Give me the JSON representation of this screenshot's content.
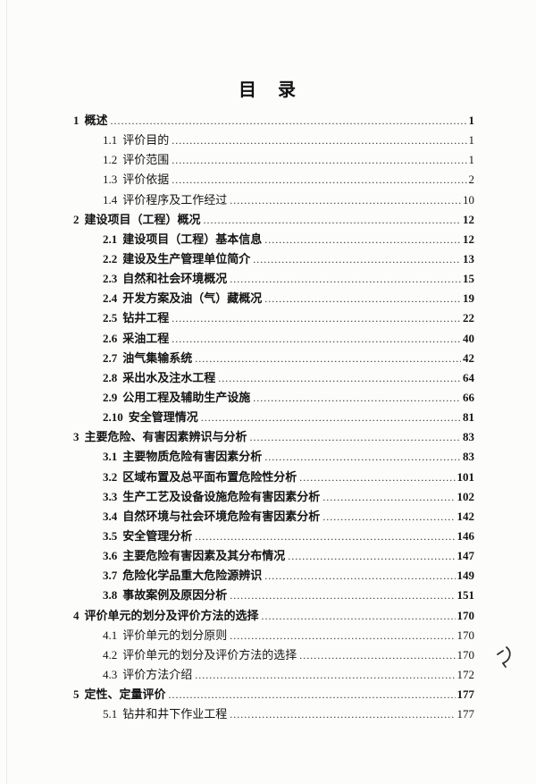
{
  "page": {
    "title": "目　录"
  },
  "annotations": {
    "handwritten_mark": "pen-squiggle"
  },
  "toc": {
    "entries": [
      {
        "num": "1",
        "text": "概述",
        "page": "1",
        "level": 1,
        "bold": true
      },
      {
        "num": "1.1",
        "text": "评价目的",
        "page": "1",
        "level": 2,
        "bold": false
      },
      {
        "num": "1.2",
        "text": "评价范围",
        "page": "1",
        "level": 2,
        "bold": false
      },
      {
        "num": "1.3",
        "text": "评价依据",
        "page": "2",
        "level": 2,
        "bold": false
      },
      {
        "num": "1.4",
        "text": "评价程序及工作经过",
        "page": "10",
        "level": 2,
        "bold": false
      },
      {
        "num": "2",
        "text": "建设项目（工程）概况",
        "page": "12",
        "level": 1,
        "bold": true
      },
      {
        "num": "2.1",
        "text": "建设项目（工程）基本信息",
        "page": "12",
        "level": 2,
        "bold": true
      },
      {
        "num": "2.2",
        "text": "建设及生产管理单位简介",
        "page": "13",
        "level": 2,
        "bold": true
      },
      {
        "num": "2.3",
        "text": "自然和社会环境概况",
        "page": "15",
        "level": 2,
        "bold": true
      },
      {
        "num": "2.4",
        "text": "开发方案及油（气）藏概况",
        "page": "19",
        "level": 2,
        "bold": true
      },
      {
        "num": "2.5",
        "text": "钻井工程",
        "page": "22",
        "level": 2,
        "bold": true
      },
      {
        "num": "2.6",
        "text": "采油工程",
        "page": "40",
        "level": 2,
        "bold": true
      },
      {
        "num": "2.7",
        "text": "油气集输系统",
        "page": "42",
        "level": 2,
        "bold": true
      },
      {
        "num": "2.8",
        "text": "采出水及注水工程",
        "page": "64",
        "level": 2,
        "bold": true
      },
      {
        "num": "2.9",
        "text": "公用工程及辅助生产设施",
        "page": "66",
        "level": 2,
        "bold": true
      },
      {
        "num": "2.10",
        "text": "安全管理情况",
        "page": "81",
        "level": 2,
        "bold": true
      },
      {
        "num": "3",
        "text": "主要危险、有害因素辨识与分析",
        "page": "83",
        "level": 1,
        "bold": true
      },
      {
        "num": "3.1",
        "text": "主要物质危险有害因素分析",
        "page": "83",
        "level": 2,
        "bold": true
      },
      {
        "num": "3.2",
        "text": "区域布置及总平面布置危险性分析",
        "page": "101",
        "level": 2,
        "bold": true
      },
      {
        "num": "3.3",
        "text": "生产工艺及设备设施危险有害因素分析",
        "page": "102",
        "level": 2,
        "bold": true
      },
      {
        "num": "3.4",
        "text": "自然环境与社会环境危险有害因素分析",
        "page": "142",
        "level": 2,
        "bold": true
      },
      {
        "num": "3.5",
        "text": "安全管理分析",
        "page": "146",
        "level": 2,
        "bold": true
      },
      {
        "num": "3.6",
        "text": "主要危险有害因素及其分布情况",
        "page": "147",
        "level": 2,
        "bold": true
      },
      {
        "num": "3.7",
        "text": "危险化学品重大危险源辨识",
        "page": "149",
        "level": 2,
        "bold": true
      },
      {
        "num": "3.8",
        "text": "事故案例及原因分析",
        "page": "151",
        "level": 2,
        "bold": true
      },
      {
        "num": "4",
        "text": "评价单元的划分及评价方法的选择",
        "page": "170",
        "level": 1,
        "bold": true
      },
      {
        "num": "4.1",
        "text": "评价单元的划分原则",
        "page": "170",
        "level": 2,
        "bold": false
      },
      {
        "num": "4.2",
        "text": "评价单元的划分及评价方法的选择",
        "page": "170",
        "level": 2,
        "bold": false
      },
      {
        "num": "4.3",
        "text": "评价方法介绍",
        "page": "172",
        "level": 2,
        "bold": false
      },
      {
        "num": "5",
        "text": "定性、定量评价",
        "page": "177",
        "level": 1,
        "bold": true
      },
      {
        "num": "5.1",
        "text": "钻井和井下作业工程",
        "page": "177",
        "level": 2,
        "bold": false
      }
    ]
  }
}
